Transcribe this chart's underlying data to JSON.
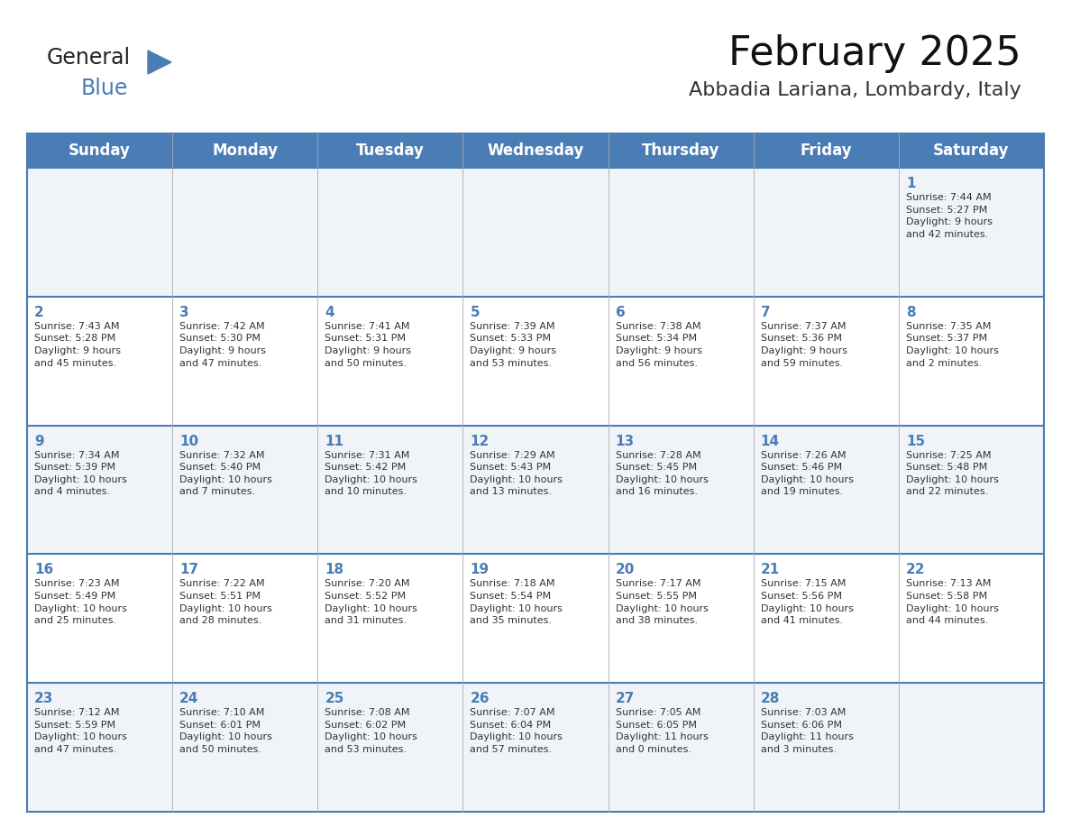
{
  "title": "February 2025",
  "subtitle": "Abbadia Lariana, Lombardy, Italy",
  "header_bg": "#4A7DB5",
  "header_text_color": "#FFFFFF",
  "cell_bg_odd": "#F0F4F8",
  "cell_bg_even": "#FFFFFF",
  "day_number_color": "#4A7DB5",
  "info_text_color": "#333333",
  "border_color": "#4A7DB5",
  "grid_color": "#AAAAAA",
  "days_of_week": [
    "Sunday",
    "Monday",
    "Tuesday",
    "Wednesday",
    "Thursday",
    "Friday",
    "Saturday"
  ],
  "weeks": [
    [
      {
        "day": null,
        "info": null
      },
      {
        "day": null,
        "info": null
      },
      {
        "day": null,
        "info": null
      },
      {
        "day": null,
        "info": null
      },
      {
        "day": null,
        "info": null
      },
      {
        "day": null,
        "info": null
      },
      {
        "day": 1,
        "info": "Sunrise: 7:44 AM\nSunset: 5:27 PM\nDaylight: 9 hours\nand 42 minutes."
      }
    ],
    [
      {
        "day": 2,
        "info": "Sunrise: 7:43 AM\nSunset: 5:28 PM\nDaylight: 9 hours\nand 45 minutes."
      },
      {
        "day": 3,
        "info": "Sunrise: 7:42 AM\nSunset: 5:30 PM\nDaylight: 9 hours\nand 47 minutes."
      },
      {
        "day": 4,
        "info": "Sunrise: 7:41 AM\nSunset: 5:31 PM\nDaylight: 9 hours\nand 50 minutes."
      },
      {
        "day": 5,
        "info": "Sunrise: 7:39 AM\nSunset: 5:33 PM\nDaylight: 9 hours\nand 53 minutes."
      },
      {
        "day": 6,
        "info": "Sunrise: 7:38 AM\nSunset: 5:34 PM\nDaylight: 9 hours\nand 56 minutes."
      },
      {
        "day": 7,
        "info": "Sunrise: 7:37 AM\nSunset: 5:36 PM\nDaylight: 9 hours\nand 59 minutes."
      },
      {
        "day": 8,
        "info": "Sunrise: 7:35 AM\nSunset: 5:37 PM\nDaylight: 10 hours\nand 2 minutes."
      }
    ],
    [
      {
        "day": 9,
        "info": "Sunrise: 7:34 AM\nSunset: 5:39 PM\nDaylight: 10 hours\nand 4 minutes."
      },
      {
        "day": 10,
        "info": "Sunrise: 7:32 AM\nSunset: 5:40 PM\nDaylight: 10 hours\nand 7 minutes."
      },
      {
        "day": 11,
        "info": "Sunrise: 7:31 AM\nSunset: 5:42 PM\nDaylight: 10 hours\nand 10 minutes."
      },
      {
        "day": 12,
        "info": "Sunrise: 7:29 AM\nSunset: 5:43 PM\nDaylight: 10 hours\nand 13 minutes."
      },
      {
        "day": 13,
        "info": "Sunrise: 7:28 AM\nSunset: 5:45 PM\nDaylight: 10 hours\nand 16 minutes."
      },
      {
        "day": 14,
        "info": "Sunrise: 7:26 AM\nSunset: 5:46 PM\nDaylight: 10 hours\nand 19 minutes."
      },
      {
        "day": 15,
        "info": "Sunrise: 7:25 AM\nSunset: 5:48 PM\nDaylight: 10 hours\nand 22 minutes."
      }
    ],
    [
      {
        "day": 16,
        "info": "Sunrise: 7:23 AM\nSunset: 5:49 PM\nDaylight: 10 hours\nand 25 minutes."
      },
      {
        "day": 17,
        "info": "Sunrise: 7:22 AM\nSunset: 5:51 PM\nDaylight: 10 hours\nand 28 minutes."
      },
      {
        "day": 18,
        "info": "Sunrise: 7:20 AM\nSunset: 5:52 PM\nDaylight: 10 hours\nand 31 minutes."
      },
      {
        "day": 19,
        "info": "Sunrise: 7:18 AM\nSunset: 5:54 PM\nDaylight: 10 hours\nand 35 minutes."
      },
      {
        "day": 20,
        "info": "Sunrise: 7:17 AM\nSunset: 5:55 PM\nDaylight: 10 hours\nand 38 minutes."
      },
      {
        "day": 21,
        "info": "Sunrise: 7:15 AM\nSunset: 5:56 PM\nDaylight: 10 hours\nand 41 minutes."
      },
      {
        "day": 22,
        "info": "Sunrise: 7:13 AM\nSunset: 5:58 PM\nDaylight: 10 hours\nand 44 minutes."
      }
    ],
    [
      {
        "day": 23,
        "info": "Sunrise: 7:12 AM\nSunset: 5:59 PM\nDaylight: 10 hours\nand 47 minutes."
      },
      {
        "day": 24,
        "info": "Sunrise: 7:10 AM\nSunset: 6:01 PM\nDaylight: 10 hours\nand 50 minutes."
      },
      {
        "day": 25,
        "info": "Sunrise: 7:08 AM\nSunset: 6:02 PM\nDaylight: 10 hours\nand 53 minutes."
      },
      {
        "day": 26,
        "info": "Sunrise: 7:07 AM\nSunset: 6:04 PM\nDaylight: 10 hours\nand 57 minutes."
      },
      {
        "day": 27,
        "info": "Sunrise: 7:05 AM\nSunset: 6:05 PM\nDaylight: 11 hours\nand 0 minutes."
      },
      {
        "day": 28,
        "info": "Sunrise: 7:03 AM\nSunset: 6:06 PM\nDaylight: 11 hours\nand 3 minutes."
      },
      {
        "day": null,
        "info": null
      }
    ]
  ],
  "logo_text_general": "General",
  "logo_text_blue": "Blue",
  "logo_triangle_color": "#4A7DB5",
  "logo_general_color": "#222222",
  "title_fontsize": 32,
  "subtitle_fontsize": 16,
  "header_fontsize": 12,
  "day_num_fontsize": 11,
  "info_fontsize": 8.0
}
